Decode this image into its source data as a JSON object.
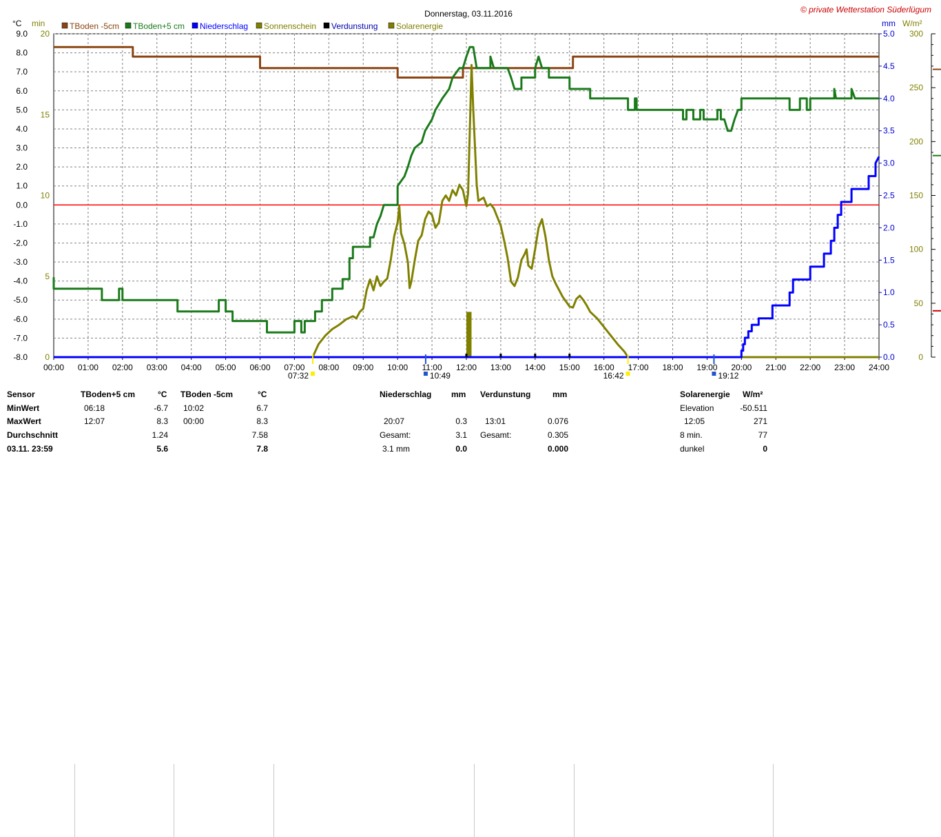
{
  "chart_data": {
    "type": "line",
    "title": "Donnerstag, 03.11.2016",
    "copyright": "© private Wetterstation Süderlügum",
    "x_ticks": [
      "00:00",
      "01:00",
      "02:00",
      "03:00",
      "04:00",
      "05:00",
      "06:00",
      "07:00",
      "08:00",
      "09:00",
      "10:00",
      "11:00",
      "12:00",
      "13:00",
      "14:00",
      "15:00",
      "16:00",
      "17:00",
      "18:00",
      "19:00",
      "20:00",
      "21:00",
      "22:00",
      "23:00",
      "24:00"
    ],
    "y_axes": {
      "temp": {
        "unit": "°C",
        "range": [
          -8,
          9
        ],
        "ticks": [
          "9.0",
          "8.0",
          "7.0",
          "6.0",
          "5.0",
          "4.0",
          "3.0",
          "2.0",
          "1.0",
          "0.0",
          "-1.0",
          "-2.0",
          "-3.0",
          "-4.0",
          "-5.0",
          "-6.0",
          "-7.0",
          "-8.0"
        ]
      },
      "min": {
        "unit": "min",
        "range": [
          0,
          20
        ],
        "ticks": [
          "20",
          "15",
          "10",
          "5",
          "0"
        ]
      },
      "mm": {
        "unit": "mm",
        "range": [
          0,
          5
        ],
        "ticks": [
          "5.0",
          "4.5",
          "4.0",
          "3.5",
          "3.0",
          "2.5",
          "2.0",
          "1.5",
          "1.0",
          "0.5",
          "0.0"
        ]
      },
      "wm2": {
        "unit": "W/m²",
        "range": [
          0,
          300
        ],
        "ticks": [
          "300",
          "250",
          "200",
          "150",
          "100",
          "50",
          "0"
        ]
      }
    },
    "legend": [
      {
        "name": "TBoden -5cm",
        "color": "#8b4513"
      },
      {
        "name": "TBoden+5 cm",
        "color": "#1a7a1a"
      },
      {
        "name": "Niederschlag",
        "color": "#0000ff"
      },
      {
        "name": "Sonnenschein",
        "color": "#808000"
      },
      {
        "name": "Verdunstung",
        "color": "#000000"
      },
      {
        "name": "Solarenergie",
        "color": "#808000"
      }
    ],
    "markers": {
      "sunrise": "07:32",
      "solar_noon": "10:49",
      "sunset": "16:42",
      "last_rain": "19:12"
    },
    "series": [
      {
        "name": "TBoden -5cm",
        "axis": "temp",
        "color": "#8b4513",
        "points": [
          [
            0,
            8.3
          ],
          [
            2.3,
            8.3
          ],
          [
            2.3,
            7.8
          ],
          [
            6.0,
            7.8
          ],
          [
            6.0,
            7.2
          ],
          [
            10.0,
            7.2
          ],
          [
            10.0,
            6.7
          ],
          [
            11.9,
            6.7
          ],
          [
            11.9,
            7.2
          ],
          [
            15.1,
            7.2
          ],
          [
            15.1,
            7.8
          ],
          [
            24,
            7.8
          ]
        ]
      },
      {
        "name": "TBoden+5 cm",
        "axis": "temp",
        "color": "#1a7a1a",
        "points": [
          [
            0,
            -3.8
          ],
          [
            0,
            -4.4
          ],
          [
            1.4,
            -4.4
          ],
          [
            1.4,
            -5.0
          ],
          [
            1.9,
            -5.0
          ],
          [
            1.9,
            -4.4
          ],
          [
            2.0,
            -4.4
          ],
          [
            2.0,
            -5.0
          ],
          [
            3.6,
            -5.0
          ],
          [
            3.6,
            -5.6
          ],
          [
            4.8,
            -5.6
          ],
          [
            4.8,
            -5.0
          ],
          [
            5.0,
            -5.0
          ],
          [
            5.0,
            -5.6
          ],
          [
            5.2,
            -5.6
          ],
          [
            5.2,
            -6.1
          ],
          [
            6.2,
            -6.1
          ],
          [
            6.2,
            -6.7
          ],
          [
            7.0,
            -6.7
          ],
          [
            7.0,
            -6.1
          ],
          [
            7.2,
            -6.1
          ],
          [
            7.2,
            -6.7
          ],
          [
            7.3,
            -6.7
          ],
          [
            7.3,
            -6.1
          ],
          [
            7.6,
            -6.1
          ],
          [
            7.6,
            -5.6
          ],
          [
            7.8,
            -5.6
          ],
          [
            7.8,
            -5.0
          ],
          [
            8.1,
            -5.0
          ],
          [
            8.1,
            -4.4
          ],
          [
            8.4,
            -4.4
          ],
          [
            8.4,
            -3.9
          ],
          [
            8.6,
            -3.9
          ],
          [
            8.6,
            -2.8
          ],
          [
            8.7,
            -2.8
          ],
          [
            8.7,
            -2.2
          ],
          [
            9.2,
            -2.2
          ],
          [
            9.2,
            -1.7
          ],
          [
            9.3,
            -1.7
          ],
          [
            9.4,
            -1.0
          ],
          [
            9.5,
            -0.6
          ],
          [
            9.6,
            0.0
          ],
          [
            10.0,
            0.0
          ],
          [
            10.0,
            1.0
          ],
          [
            10.2,
            1.5
          ],
          [
            10.3,
            2.0
          ],
          [
            10.4,
            2.6
          ],
          [
            10.5,
            3.0
          ],
          [
            10.7,
            3.3
          ],
          [
            10.8,
            3.9
          ],
          [
            11.0,
            4.5
          ],
          [
            11.1,
            5.0
          ],
          [
            11.3,
            5.6
          ],
          [
            11.5,
            6.1
          ],
          [
            11.6,
            6.7
          ],
          [
            11.8,
            7.2
          ],
          [
            11.9,
            7.2
          ],
          [
            12.0,
            7.8
          ],
          [
            12.1,
            8.3
          ],
          [
            12.2,
            8.3
          ],
          [
            12.3,
            7.2
          ],
          [
            12.7,
            7.2
          ],
          [
            12.7,
            7.8
          ],
          [
            12.8,
            7.2
          ],
          [
            13.2,
            7.2
          ],
          [
            13.3,
            6.7
          ],
          [
            13.4,
            6.1
          ],
          [
            13.6,
            6.1
          ],
          [
            13.6,
            6.7
          ],
          [
            14.0,
            6.7
          ],
          [
            14.0,
            7.2
          ],
          [
            14.1,
            7.8
          ],
          [
            14.2,
            7.2
          ],
          [
            14.4,
            7.2
          ],
          [
            14.4,
            6.7
          ],
          [
            15.0,
            6.7
          ],
          [
            15.0,
            6.1
          ],
          [
            15.6,
            6.1
          ],
          [
            15.6,
            5.6
          ],
          [
            16.7,
            5.6
          ],
          [
            16.7,
            5.0
          ],
          [
            16.9,
            5.0
          ],
          [
            16.9,
            5.6
          ],
          [
            16.95,
            5.6
          ],
          [
            16.95,
            5.0
          ],
          [
            18.3,
            5.0
          ],
          [
            18.3,
            4.5
          ],
          [
            18.4,
            4.5
          ],
          [
            18.4,
            5.0
          ],
          [
            18.6,
            5.0
          ],
          [
            18.6,
            4.5
          ],
          [
            18.8,
            4.5
          ],
          [
            18.8,
            5.0
          ],
          [
            18.9,
            5.0
          ],
          [
            18.9,
            4.5
          ],
          [
            19.3,
            4.5
          ],
          [
            19.3,
            5.0
          ],
          [
            19.4,
            5.0
          ],
          [
            19.4,
            4.5
          ],
          [
            19.5,
            4.5
          ],
          [
            19.6,
            3.9
          ],
          [
            19.7,
            3.9
          ],
          [
            19.8,
            4.5
          ],
          [
            19.9,
            5.0
          ],
          [
            20.0,
            5.0
          ],
          [
            20.0,
            5.6
          ],
          [
            21.4,
            5.6
          ],
          [
            21.4,
            5.0
          ],
          [
            21.7,
            5.0
          ],
          [
            21.7,
            5.6
          ],
          [
            21.9,
            5.6
          ],
          [
            21.9,
            5.0
          ],
          [
            22.0,
            5.0
          ],
          [
            22.0,
            5.6
          ],
          [
            22.7,
            5.6
          ],
          [
            22.7,
            6.1
          ],
          [
            22.75,
            5.6
          ],
          [
            23.2,
            5.6
          ],
          [
            23.2,
            6.1
          ],
          [
            23.3,
            5.6
          ],
          [
            24,
            5.6
          ]
        ]
      },
      {
        "name": "Solarenergie",
        "axis": "wm2",
        "color": "#808000",
        "points": [
          [
            7.53,
            0
          ],
          [
            7.6,
            5
          ],
          [
            7.7,
            12
          ],
          [
            7.9,
            20
          ],
          [
            8.1,
            26
          ],
          [
            8.3,
            30
          ],
          [
            8.5,
            35
          ],
          [
            8.7,
            38
          ],
          [
            8.8,
            36
          ],
          [
            8.9,
            42
          ],
          [
            9.0,
            45
          ],
          [
            9.1,
            62
          ],
          [
            9.2,
            72
          ],
          [
            9.3,
            62
          ],
          [
            9.4,
            75
          ],
          [
            9.5,
            66
          ],
          [
            9.6,
            70
          ],
          [
            9.7,
            73
          ],
          [
            9.8,
            90
          ],
          [
            9.9,
            112
          ],
          [
            10.0,
            125
          ],
          [
            10.05,
            140
          ],
          [
            10.1,
            115
          ],
          [
            10.2,
            105
          ],
          [
            10.3,
            88
          ],
          [
            10.35,
            64
          ],
          [
            10.4,
            70
          ],
          [
            10.5,
            90
          ],
          [
            10.6,
            108
          ],
          [
            10.7,
            113
          ],
          [
            10.8,
            128
          ],
          [
            10.9,
            135
          ],
          [
            11.0,
            132
          ],
          [
            11.1,
            120
          ],
          [
            11.2,
            125
          ],
          [
            11.3,
            145
          ],
          [
            11.4,
            150
          ],
          [
            11.5,
            145
          ],
          [
            11.6,
            155
          ],
          [
            11.7,
            150
          ],
          [
            11.8,
            160
          ],
          [
            11.9,
            155
          ],
          [
            12.0,
            140
          ],
          [
            12.05,
            152
          ],
          [
            12.1,
            210
          ],
          [
            12.15,
            271
          ],
          [
            12.2,
            230
          ],
          [
            12.3,
            160
          ],
          [
            12.35,
            145
          ],
          [
            12.5,
            148
          ],
          [
            12.6,
            140
          ],
          [
            12.7,
            142
          ],
          [
            12.8,
            138
          ],
          [
            12.9,
            130
          ],
          [
            13.0,
            122
          ],
          [
            13.1,
            108
          ],
          [
            13.2,
            92
          ],
          [
            13.3,
            70
          ],
          [
            13.4,
            66
          ],
          [
            13.5,
            74
          ],
          [
            13.6,
            90
          ],
          [
            13.7,
            96
          ],
          [
            13.75,
            100
          ],
          [
            13.8,
            85
          ],
          [
            13.9,
            82
          ],
          [
            14.0,
            100
          ],
          [
            14.1,
            120
          ],
          [
            14.2,
            128
          ],
          [
            14.3,
            112
          ],
          [
            14.4,
            90
          ],
          [
            14.5,
            75
          ],
          [
            14.6,
            68
          ],
          [
            14.8,
            56
          ],
          [
            15.0,
            47
          ],
          [
            15.1,
            46
          ],
          [
            15.2,
            54
          ],
          [
            15.3,
            57
          ],
          [
            15.4,
            53
          ],
          [
            15.5,
            48
          ],
          [
            15.6,
            42
          ],
          [
            15.8,
            36
          ],
          [
            16.0,
            28
          ],
          [
            16.2,
            20
          ],
          [
            16.4,
            12
          ],
          [
            16.6,
            5
          ],
          [
            16.7,
            0
          ],
          [
            24,
            0
          ]
        ]
      },
      {
        "name": "Niederschlag",
        "axis": "mm",
        "color": "#0000ff",
        "points": [
          [
            0,
            0
          ],
          [
            20.0,
            0
          ],
          [
            20.0,
            0.1
          ],
          [
            20.05,
            0.1
          ],
          [
            20.05,
            0.2
          ],
          [
            20.1,
            0.2
          ],
          [
            20.1,
            0.3
          ],
          [
            20.2,
            0.3
          ],
          [
            20.2,
            0.4
          ],
          [
            20.3,
            0.4
          ],
          [
            20.3,
            0.5
          ],
          [
            20.5,
            0.5
          ],
          [
            20.5,
            0.6
          ],
          [
            20.9,
            0.6
          ],
          [
            20.9,
            0.8
          ],
          [
            21.4,
            0.8
          ],
          [
            21.4,
            1.0
          ],
          [
            21.5,
            1.0
          ],
          [
            21.5,
            1.2
          ],
          [
            22.0,
            1.2
          ],
          [
            22.0,
            1.4
          ],
          [
            22.4,
            1.4
          ],
          [
            22.4,
            1.6
          ],
          [
            22.6,
            1.6
          ],
          [
            22.6,
            1.8
          ],
          [
            22.7,
            1.8
          ],
          [
            22.7,
            2.0
          ],
          [
            22.8,
            2.0
          ],
          [
            22.8,
            2.2
          ],
          [
            22.9,
            2.2
          ],
          [
            22.9,
            2.4
          ],
          [
            23.2,
            2.4
          ],
          [
            23.2,
            2.6
          ],
          [
            23.7,
            2.6
          ],
          [
            23.7,
            2.8
          ],
          [
            23.9,
            2.8
          ],
          [
            23.9,
            3.0
          ],
          [
            24,
            3.1
          ]
        ]
      }
    ],
    "sunshine_bars": [
      {
        "from": 12.0,
        "to": 12.15,
        "minutes": 2.8
      }
    ],
    "evaporation_ticks": [
      12.0,
      13.0,
      14.0,
      15.0
    ],
    "zero_line": 0.0,
    "right_marks": [
      {
        "axis": "wm2",
        "value": 267,
        "color": "#8b4513"
      },
      {
        "axis": "wm2",
        "value": 187,
        "color": "#1a7a1a"
      },
      {
        "axis": "wm2",
        "value": 43,
        "color": "#cc0000"
      }
    ]
  },
  "stats": {
    "col_sensor": {
      "header": "Sensor",
      "rows": [
        "MinWert",
        "MaxWert",
        "Durchschnitt",
        "03.11. 23:59"
      ]
    },
    "tboden5": {
      "header": "TBoden+5 cm",
      "unit": "°C",
      "min_time": "06:18",
      "min_val": "-6.7",
      "max_time": "12:07",
      "max_val": "8.3",
      "avg": "1.24",
      "current": "5.6"
    },
    "tboden_minus5": {
      "header": "TBoden -5cm",
      "unit": "°C",
      "min_time": "10:02",
      "min_val": "6.7",
      "max_time": "00:00",
      "max_val": "8.3",
      "avg": "7.58",
      "current": "7.8"
    },
    "niederschlag": {
      "header": "Niederschlag",
      "unit": "mm",
      "max_time": "20:07",
      "max_val": "0.3",
      "total_label": "Gesamt:",
      "total": "3.1",
      "last_label": "3.1 mm",
      "last_val": "0.0"
    },
    "verdunstung": {
      "header": "Verdunstung",
      "unit": "mm",
      "max_time": "13:01",
      "max_val": "0.076",
      "total_label": "Gesamt:",
      "total": "0.305",
      "current": "0.000"
    },
    "solar": {
      "header": "Solarenergie",
      "unit": "W/m²",
      "elev_label": "Elevation",
      "elev": "-50.511",
      "max_time": "12:05",
      "max_val": "271",
      "min_label": "8 min.",
      "min_val": "77",
      "dark_label": "dunkel",
      "dark_val": "0"
    }
  }
}
